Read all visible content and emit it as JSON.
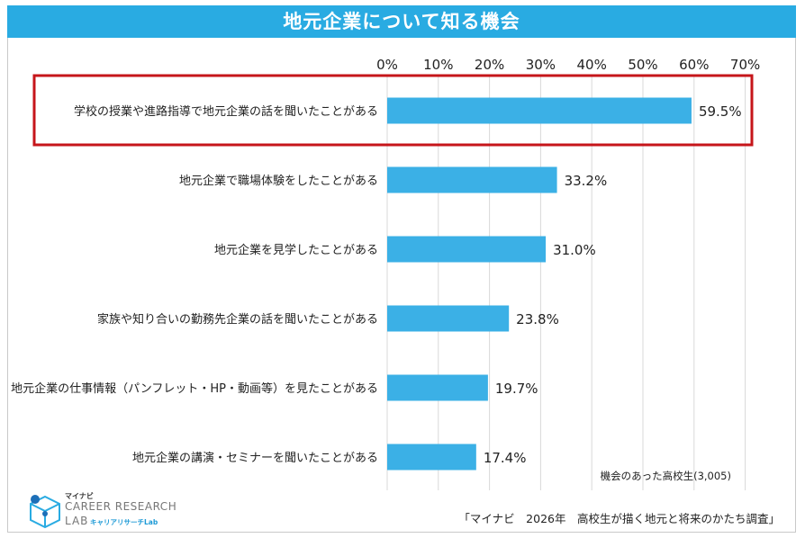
{
  "chart_data": {
    "type": "bar",
    "orientation": "horizontal",
    "title": "地元企業について知る機会",
    "categories": [
      "学校の授業や進路指導で地元企業の話を聞いたことがある",
      "地元企業で職場体験をしたことがある",
      "地元企業を見学したことがある",
      "家族や知り合いの勤務先企業の話を聞いたことがある",
      "地元企業の仕事情報（パンフレット・HP・動画等）を見たことがある",
      "地元企業の講演・セミナーを聞いたことがある"
    ],
    "values": [
      59.5,
      33.2,
      31.0,
      23.8,
      19.7,
      17.4
    ],
    "value_labels": [
      "59.5%",
      "33.2%",
      "31.0%",
      "23.8%",
      "19.7%",
      "17.4%"
    ],
    "x_ticks": [
      "0%",
      "10%",
      "20%",
      "30%",
      "40%",
      "50%",
      "60%",
      "70%"
    ],
    "xlim": [
      0,
      70
    ],
    "axis_position": "top",
    "grid": true,
    "highlighted_category_index": 0,
    "bar_color": "#3bb0e6",
    "title_bar_color": "#29abe2",
    "highlight_color": "#c6151a",
    "grid_color": "#d8d8d8"
  },
  "notes": {
    "sample": "機会のあった高校生(3,005)",
    "source": "「マイナビ　2026年　高校生が描く地元と将来のかたち調査」"
  },
  "logo": {
    "top": "マイナビ",
    "main": "CAREER RESEARCH",
    "lab": "LAB",
    "kana": "キャリアリサーチLab"
  }
}
